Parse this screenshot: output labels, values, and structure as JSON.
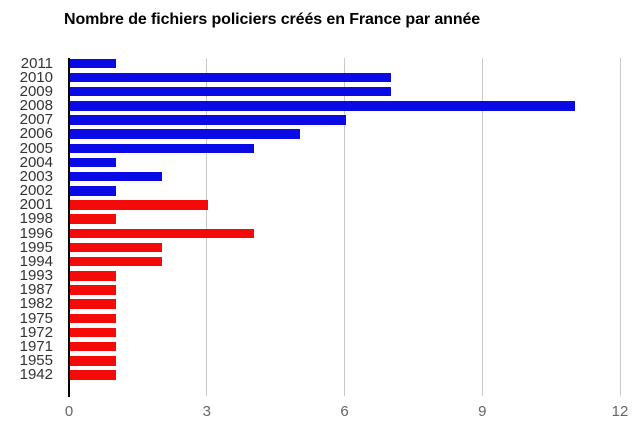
{
  "chart_data": {
    "type": "bar",
    "orientation": "horizontal",
    "title": "Nombre de fichiers policiers créés en France par année",
    "categories": [
      "2011",
      "2010",
      "2009",
      "2008",
      "2007",
      "2006",
      "2005",
      "2004",
      "2003",
      "2002",
      "2001",
      "1998",
      "1996",
      "1995",
      "1994",
      "1993",
      "1987",
      "1982",
      "1975",
      "1972",
      "1971",
      "1955",
      "1942"
    ],
    "values": [
      1,
      7,
      7,
      11,
      6,
      5,
      4,
      1,
      2,
      1,
      3,
      1,
      4,
      2,
      2,
      1,
      1,
      1,
      1,
      1,
      1,
      1,
      1
    ],
    "bar_colors": [
      "blue",
      "blue",
      "blue",
      "blue",
      "blue",
      "blue",
      "blue",
      "blue",
      "blue",
      "blue",
      "red",
      "red",
      "red",
      "red",
      "red",
      "red",
      "red",
      "red",
      "red",
      "red",
      "red",
      "red",
      "red"
    ],
    "colors": {
      "blue": "#0a0ae6",
      "red": "#f50a0a"
    },
    "xlabel": "",
    "ylabel": "",
    "x_ticks": [
      0,
      3,
      6,
      9,
      12
    ],
    "xlim": [
      0,
      12
    ],
    "grid": true,
    "legend": "none",
    "axis_color": "#000000",
    "gridline_color": "#c9c9c9",
    "tick_label_color": "#666666",
    "category_label_color": "#333333",
    "background": "#ffffff"
  }
}
